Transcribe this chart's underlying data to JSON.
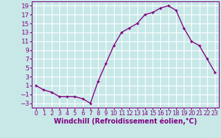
{
  "x": [
    0,
    1,
    2,
    3,
    4,
    5,
    6,
    7,
    8,
    9,
    10,
    11,
    12,
    13,
    14,
    15,
    16,
    17,
    18,
    19,
    20,
    21,
    22,
    23
  ],
  "y": [
    1,
    0,
    -0.5,
    -1.5,
    -1.5,
    -1.5,
    -2,
    -3,
    2,
    6,
    10,
    13,
    14,
    15,
    17,
    17.5,
    18.5,
    19,
    18,
    14,
    11,
    10,
    7,
    4
  ],
  "line_color": "#800080",
  "marker": "+",
  "bg_color": "#c8e8e8",
  "grid_color": "#ffffff",
  "xlabel": "Windchill (Refroidissement éolien,°C)",
  "ylim": [
    -4,
    20
  ],
  "xlim": [
    -0.5,
    23.5
  ],
  "yticks": [
    -3,
    -1,
    1,
    3,
    5,
    7,
    9,
    11,
    13,
    15,
    17,
    19
  ],
  "xticks": [
    0,
    1,
    2,
    3,
    4,
    5,
    6,
    7,
    8,
    9,
    10,
    11,
    12,
    13,
    14,
    15,
    16,
    17,
    18,
    19,
    20,
    21,
    22,
    23
  ],
  "xtick_labels": [
    "0",
    "1",
    "2",
    "3",
    "4",
    "5",
    "6",
    "7",
    "8",
    "9",
    "10",
    "11",
    "12",
    "13",
    "14",
    "15",
    "16",
    "17",
    "18",
    "19",
    "20",
    "21",
    "22",
    "23"
  ],
  "font_color": "#800080",
  "font_size": 6.5,
  "xlabel_fontsize": 7,
  "line_width": 1.0,
  "marker_size": 3.5,
  "marker_edge_width": 1.0
}
